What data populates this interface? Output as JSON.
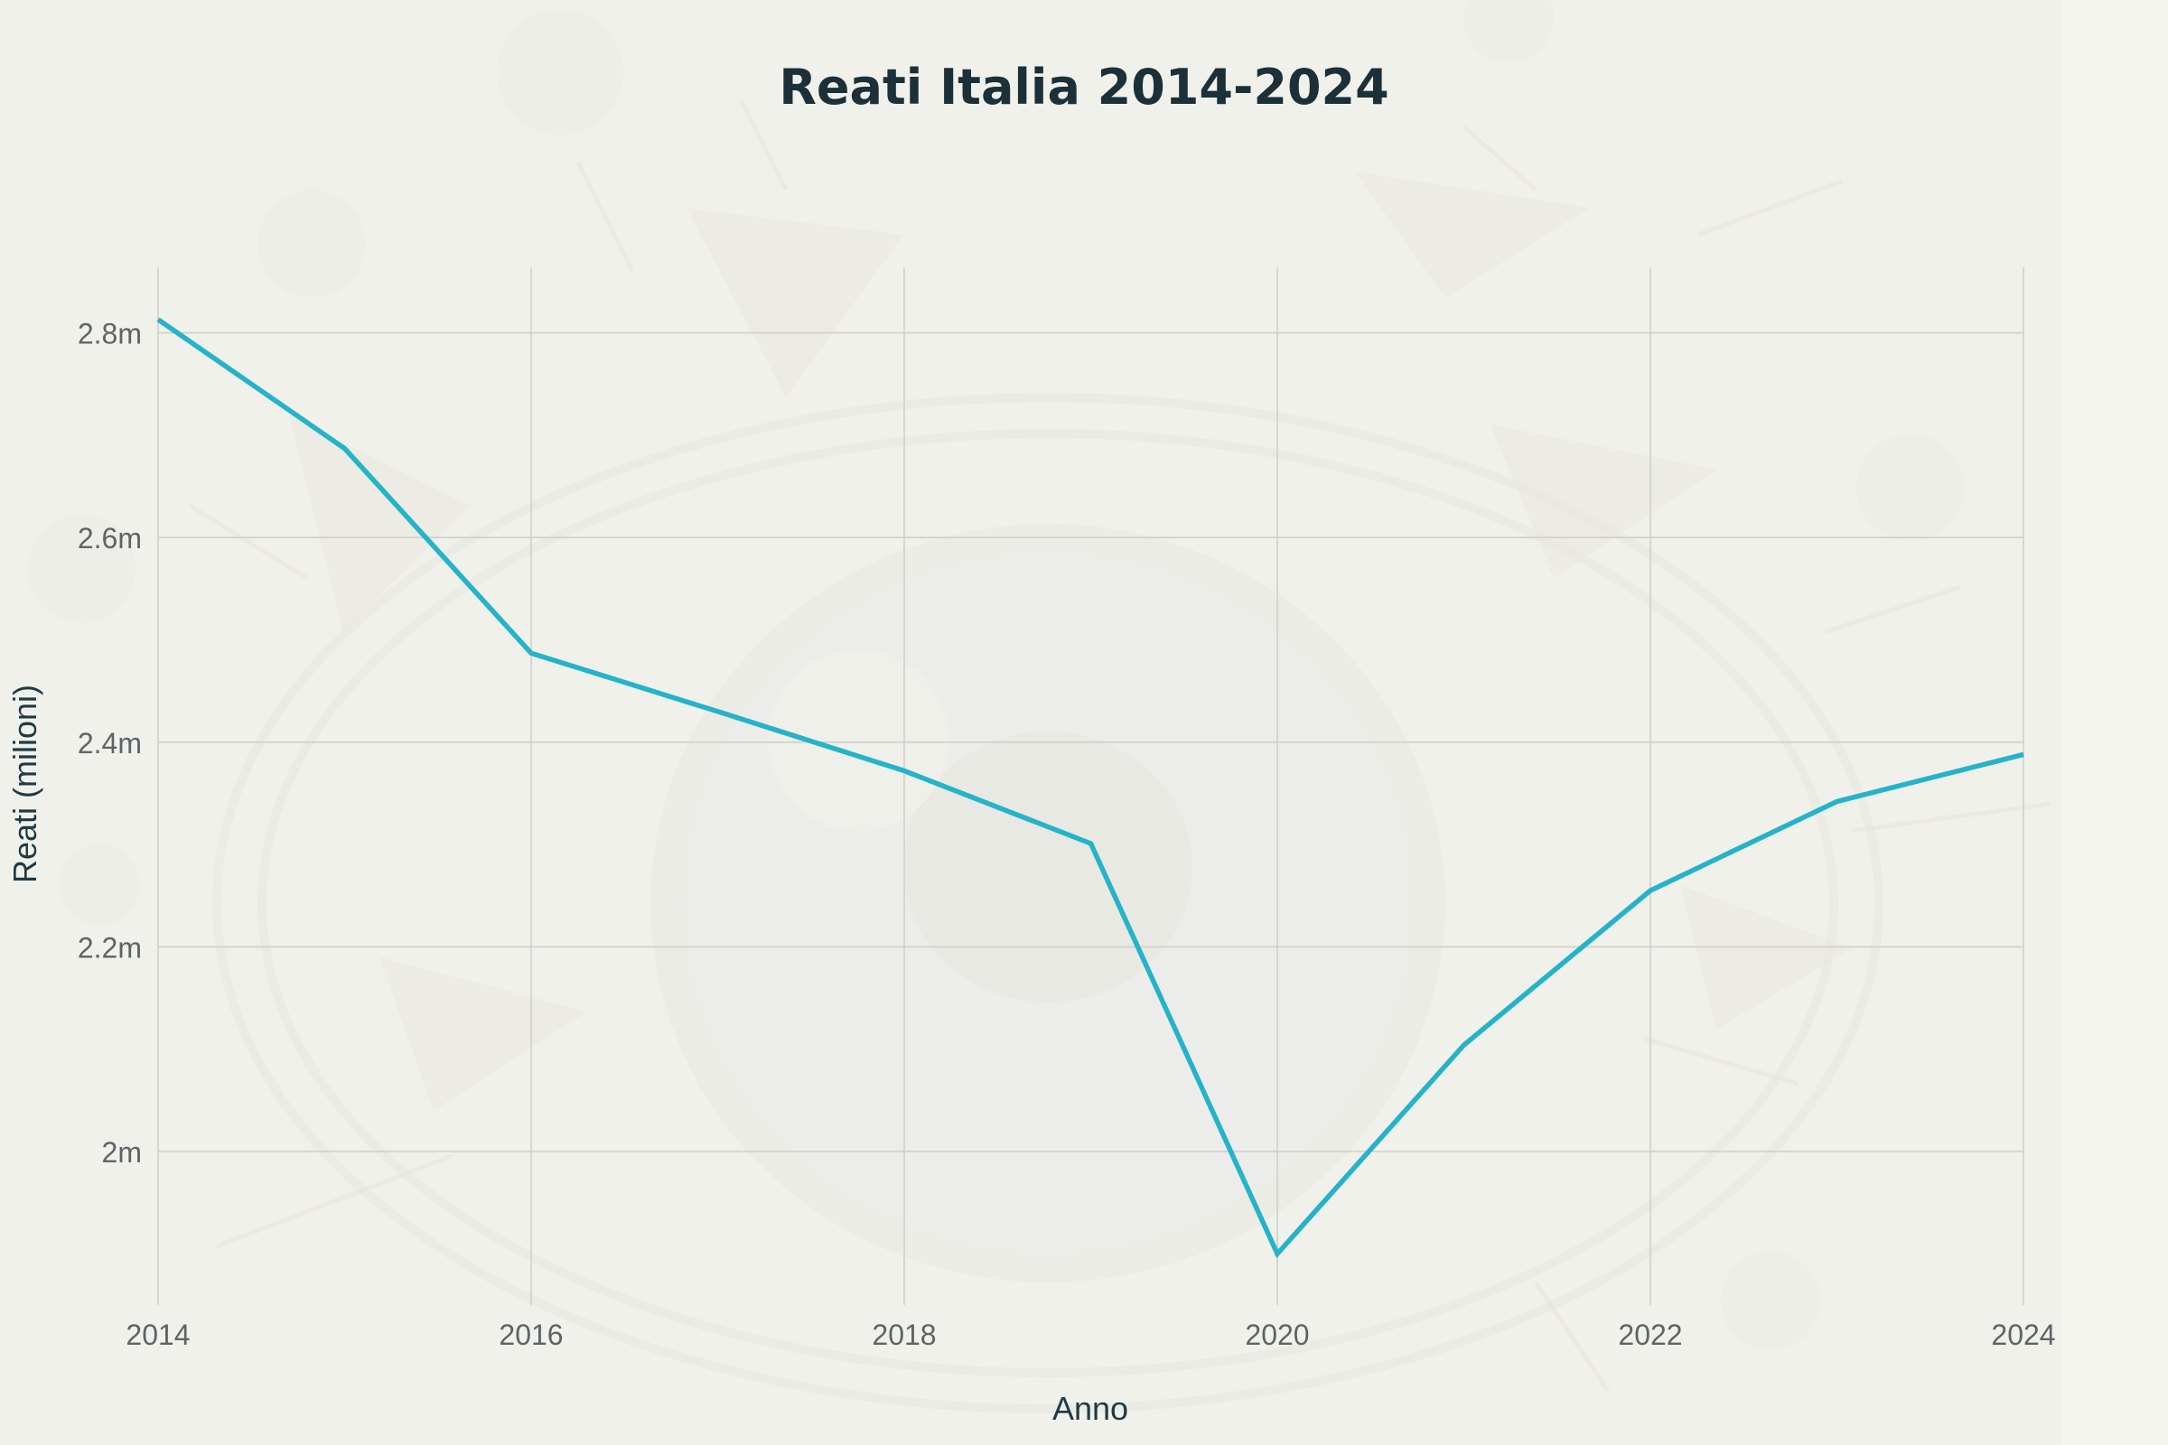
{
  "chart_data": {
    "type": "line",
    "title": "Reati Italia 2014-2024",
    "xlabel": "Anno",
    "ylabel": "Reati (milioni)",
    "x": [
      2014,
      2015,
      2016,
      2017,
      2018,
      2019,
      2020,
      2021,
      2022,
      2023,
      2024
    ],
    "series": [
      {
        "values": [
          2.813,
          2.687,
          2.487,
          2.43,
          2.372,
          2.301,
          1.9,
          2.104,
          2.255,
          2.342,
          2.388
        ]
      }
    ],
    "xlim": [
      2014,
      2024
    ],
    "ylim": [
      1.85,
      2.864
    ],
    "x_ticks": [
      2014,
      2016,
      2018,
      2020,
      2022,
      2024
    ],
    "x_tick_labels": [
      "2014",
      "2016",
      "2018",
      "2020",
      "2022",
      "2024"
    ],
    "y_ticks": [
      2.0,
      2.2,
      2.4,
      2.6,
      2.8
    ],
    "y_tick_labels": [
      "2m",
      "2.2m",
      "2.4m",
      "2.6m",
      "2.8m"
    ],
    "grid": true,
    "legend": false,
    "colors": {
      "line": "#25b3c9",
      "grid": "#cfd0cc",
      "title": "#1b3038",
      "axis_text": "#5d6466",
      "label_text": "#1f3a44",
      "background": "#f2f2ec"
    }
  }
}
